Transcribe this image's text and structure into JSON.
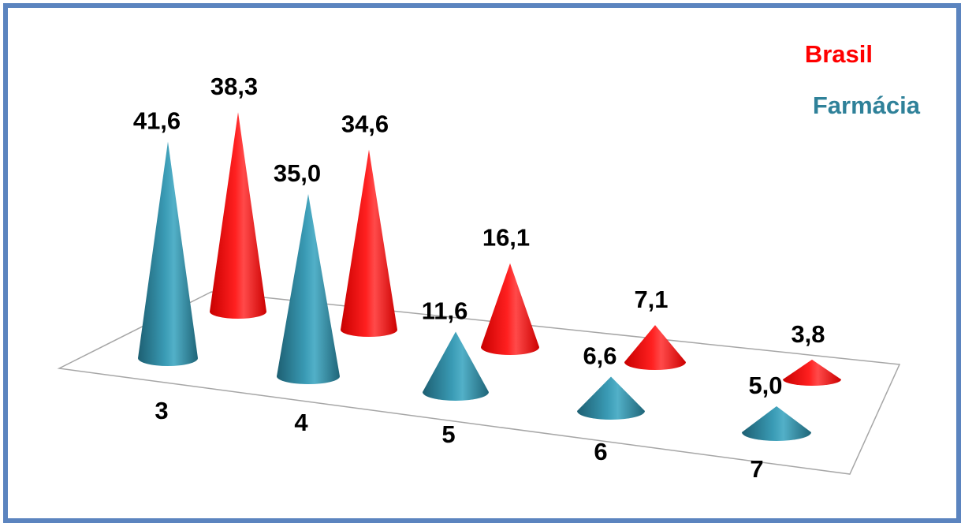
{
  "chart_data": {
    "type": "bar",
    "style": "3d-cone",
    "categories": [
      "3",
      "4",
      "5",
      "6",
      "7"
    ],
    "series": [
      {
        "name": "Farmácia",
        "color": "#2f8199",
        "values": [
          41.6,
          35.0,
          11.6,
          6.6,
          5.0
        ],
        "labels": [
          "41,6",
          "35,0",
          "11,6",
          "6,6",
          "5,0"
        ]
      },
      {
        "name": "Brasil",
        "color": "#ff0000",
        "values": [
          38.3,
          34.6,
          16.1,
          7.1,
          3.8
        ],
        "labels": [
          "38,3",
          "34,6",
          "16,1",
          "7,1",
          "3,8"
        ]
      }
    ],
    "legend_position": "top-right",
    "grid": false,
    "border_color": "#5b84bf"
  }
}
